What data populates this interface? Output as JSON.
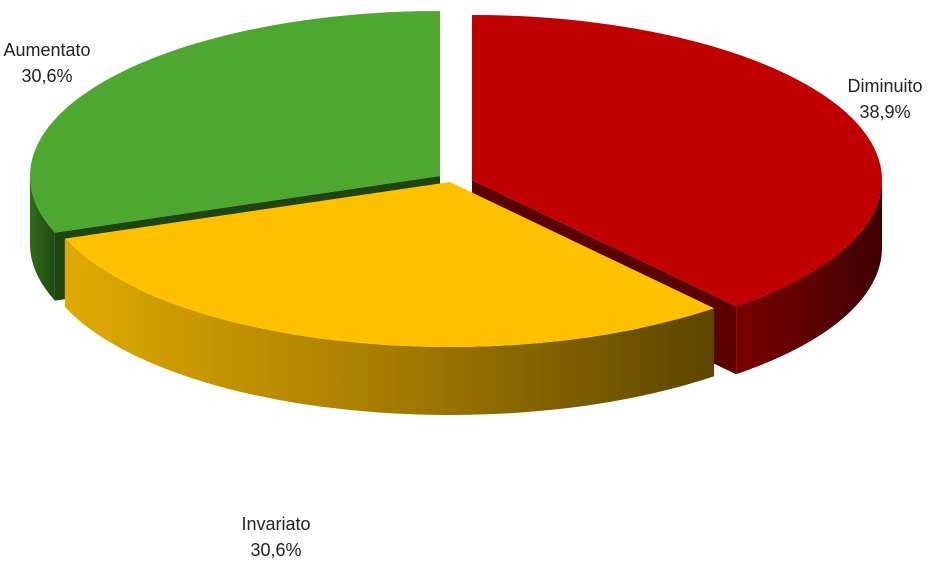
{
  "chart_data": {
    "type": "pie",
    "style": "3d-exploded",
    "legend": "none",
    "slices": [
      {
        "label": "Diminuito",
        "value": 38.9,
        "display": "38,9%",
        "color": "#c00000"
      },
      {
        "label": "Invariato",
        "value": 30.6,
        "display": "30,6%",
        "color": "#ffc000"
      },
      {
        "label": "Aumentato",
        "value": 30.6,
        "display": "30,6%",
        "color": "#4ea72e"
      }
    ]
  }
}
